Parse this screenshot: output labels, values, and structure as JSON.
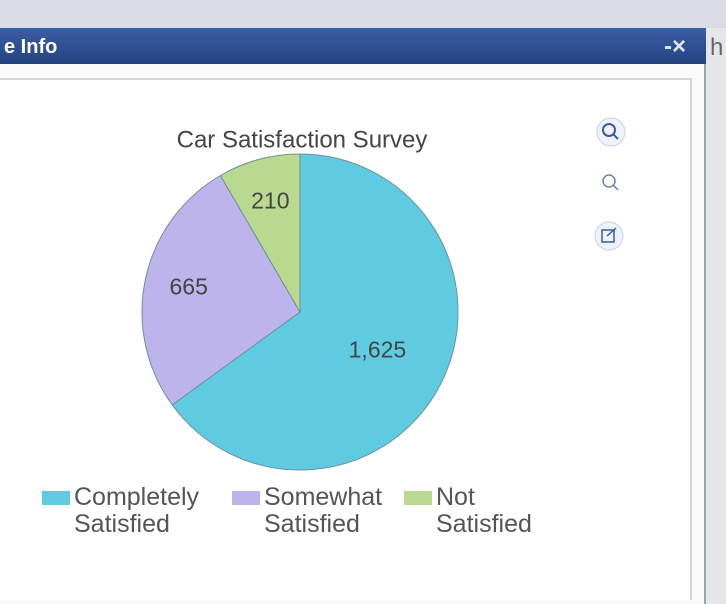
{
  "window": {
    "title": "e Info",
    "controls": "-×",
    "edge_text": "h"
  },
  "chart_data": {
    "type": "pie",
    "title": "Car Satisfaction Survey",
    "categories": [
      "Completely Satisfied",
      "Somewhat Satisfied",
      "Not Satisfied"
    ],
    "values": [
      1625,
      665,
      210
    ],
    "value_labels": [
      "1,625",
      "665",
      "210"
    ],
    "colors": [
      "#5fcbe0",
      "#bcb4ea",
      "#b9d98e"
    ],
    "legend": "bottom"
  }
}
